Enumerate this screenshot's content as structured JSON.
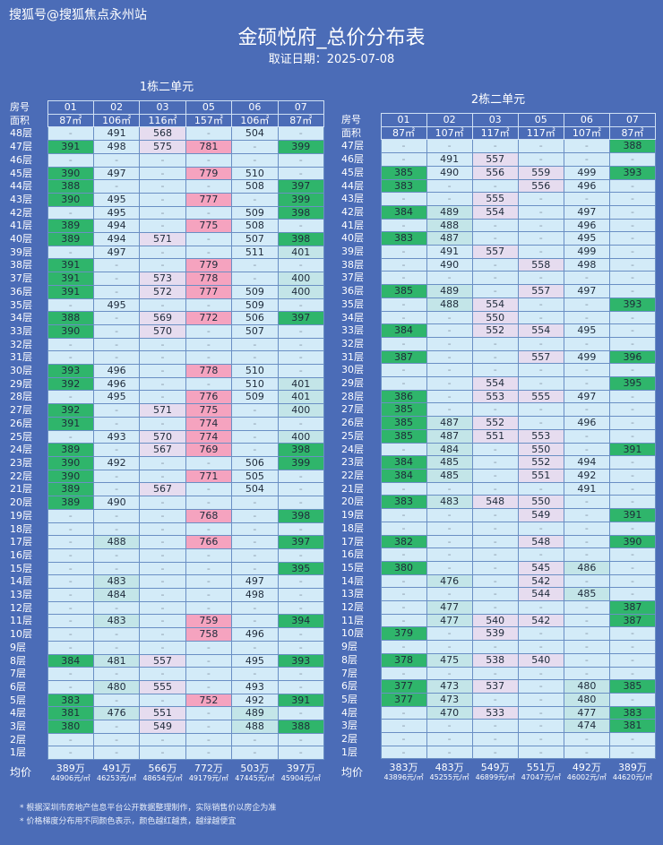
{
  "watermark": "搜狐号@搜狐焦点永州站",
  "title": "金硕悦府_总价分布表",
  "subtitle": "取证日期：2025-07-08",
  "colors": {
    "background": "#4b6cb7",
    "base": "#d3ebf8",
    "green": "#2fb56b",
    "teal": "#c3e5e8",
    "purple": "#e6dcef",
    "pink": "#f5a3bf"
  },
  "row_labels": {
    "room": "房号",
    "area": "面积",
    "avg": "均价"
  },
  "tables": [
    {
      "title": "1栋二单元",
      "rooms": [
        "01",
        "02",
        "03",
        "05",
        "06",
        "07"
      ],
      "areas": [
        "87㎡",
        "106㎡",
        "116㎡",
        "157㎡",
        "106㎡",
        "87㎡"
      ],
      "rows": [
        [
          "48层",
          "-",
          "491",
          "568",
          "-",
          "504",
          "-"
        ],
        [
          "47层",
          "391",
          "498",
          "575",
          "781",
          "-",
          "399"
        ],
        [
          "46层",
          "-",
          "-",
          "-",
          "-",
          "-",
          "-"
        ],
        [
          "45层",
          "390",
          "497",
          "-",
          "779",
          "510",
          "-"
        ],
        [
          "44层",
          "388",
          "-",
          "-",
          "-",
          "508",
          "397"
        ],
        [
          "43层",
          "390",
          "495",
          "-",
          "777",
          "-",
          "399"
        ],
        [
          "42层",
          "-",
          "495",
          "-",
          "-",
          "509",
          "398"
        ],
        [
          "41层",
          "389",
          "494",
          "-",
          "775",
          "508",
          "-"
        ],
        [
          "40层",
          "389",
          "494",
          "571",
          "-",
          "507",
          "398"
        ],
        [
          "39层",
          "-",
          "497",
          "-",
          "-",
          "511",
          "401"
        ],
        [
          "38层",
          "391",
          "-",
          "-",
          "779",
          "-",
          "-"
        ],
        [
          "37层",
          "391",
          "-",
          "573",
          "778",
          "-",
          "400"
        ],
        [
          "36层",
          "391",
          "-",
          "572",
          "777",
          "509",
          "400"
        ],
        [
          "35层",
          "-",
          "495",
          "-",
          "-",
          "509",
          "-"
        ],
        [
          "34层",
          "388",
          "-",
          "569",
          "772",
          "506",
          "397"
        ],
        [
          "33层",
          "390",
          "-",
          "570",
          "-",
          "507",
          "-"
        ],
        [
          "32层",
          "-",
          "-",
          "-",
          "-",
          "-",
          "-"
        ],
        [
          "31层",
          "-",
          "-",
          "-",
          "-",
          "-",
          "-"
        ],
        [
          "30层",
          "393",
          "496",
          "-",
          "778",
          "510",
          "-"
        ],
        [
          "29层",
          "392",
          "496",
          "-",
          "-",
          "510",
          "401"
        ],
        [
          "28层",
          "-",
          "495",
          "-",
          "776",
          "509",
          "401"
        ],
        [
          "27层",
          "392",
          "-",
          "571",
          "775",
          "-",
          "400"
        ],
        [
          "26层",
          "391",
          "-",
          "-",
          "774",
          "-",
          "-"
        ],
        [
          "25层",
          "-",
          "493",
          "570",
          "774",
          "-",
          "400"
        ],
        [
          "24层",
          "389",
          "-",
          "567",
          "769",
          "-",
          "398"
        ],
        [
          "23层",
          "390",
          "492",
          "-",
          "-",
          "506",
          "399"
        ],
        [
          "22层",
          "390",
          "-",
          "-",
          "771",
          "505",
          "-"
        ],
        [
          "21层",
          "389",
          "-",
          "567",
          "-",
          "504",
          "-"
        ],
        [
          "20层",
          "389",
          "490",
          "-",
          "-",
          "-",
          "-"
        ],
        [
          "19层",
          "-",
          "-",
          "-",
          "768",
          "-",
          "398"
        ],
        [
          "18层",
          "-",
          "-",
          "-",
          "-",
          "-",
          "-"
        ],
        [
          "17层",
          "-",
          "488",
          "-",
          "766",
          "-",
          "397"
        ],
        [
          "16层",
          "-",
          "-",
          "-",
          "-",
          "-",
          "-"
        ],
        [
          "15层",
          "-",
          "-",
          "-",
          "-",
          "-",
          "395"
        ],
        [
          "14层",
          "-",
          "483",
          "-",
          "-",
          "497",
          "-"
        ],
        [
          "13层",
          "-",
          "484",
          "-",
          "-",
          "498",
          "-"
        ],
        [
          "12层",
          "-",
          "-",
          "-",
          "-",
          "-",
          "-"
        ],
        [
          "11层",
          "-",
          "483",
          "-",
          "759",
          "-",
          "394"
        ],
        [
          "10层",
          "-",
          "-",
          "-",
          "758",
          "496",
          "-"
        ],
        [
          "9层",
          "-",
          "-",
          "-",
          "-",
          "-",
          "-"
        ],
        [
          "8层",
          "384",
          "481",
          "557",
          "-",
          "495",
          "393"
        ],
        [
          "7层",
          "-",
          "-",
          "-",
          "-",
          "-",
          "-"
        ],
        [
          "6层",
          "-",
          "480",
          "555",
          "-",
          "493",
          "-"
        ],
        [
          "5层",
          "383",
          "-",
          "-",
          "752",
          "492",
          "391"
        ],
        [
          "4层",
          "381",
          "476",
          "551",
          "-",
          "489",
          "-"
        ],
        [
          "3层",
          "380",
          "-",
          "549",
          "-",
          "488",
          "388"
        ],
        [
          "2层",
          "-",
          "-",
          "-",
          "-",
          "-",
          "-"
        ],
        [
          "1层",
          "-",
          "-",
          "-",
          "-",
          "-",
          "-"
        ]
      ],
      "averages": [
        {
          "total": "389万",
          "unit": "44906元/㎡"
        },
        {
          "total": "491万",
          "unit": "46253元/㎡"
        },
        {
          "total": "566万",
          "unit": "48654元/㎡"
        },
        {
          "total": "772万",
          "unit": "49179元/㎡"
        },
        {
          "total": "503万",
          "unit": "47445元/㎡"
        },
        {
          "total": "397万",
          "unit": "45904元/㎡"
        }
      ]
    },
    {
      "title": "2栋二单元",
      "rooms": [
        "01",
        "02",
        "03",
        "05",
        "06",
        "07"
      ],
      "areas": [
        "87㎡",
        "107㎡",
        "117㎡",
        "117㎡",
        "107㎡",
        "87㎡"
      ],
      "rows": [
        [
          "47层",
          "-",
          "-",
          "-",
          "-",
          "-",
          "388"
        ],
        [
          "46层",
          "-",
          "491",
          "557",
          "-",
          "-",
          "-"
        ],
        [
          "45层",
          "385",
          "490",
          "556",
          "559",
          "499",
          "393"
        ],
        [
          "44层",
          "383",
          "-",
          "-",
          "556",
          "496",
          "-"
        ],
        [
          "43层",
          "-",
          "-",
          "555",
          "-",
          "-",
          "-"
        ],
        [
          "42层",
          "384",
          "489",
          "554",
          "-",
          "497",
          "-"
        ],
        [
          "41层",
          "-",
          "488",
          "-",
          "-",
          "496",
          "-"
        ],
        [
          "40层",
          "383",
          "487",
          "-",
          "-",
          "495",
          "-"
        ],
        [
          "39层",
          "-",
          "491",
          "557",
          "-",
          "499",
          "-"
        ],
        [
          "38层",
          "-",
          "490",
          "-",
          "558",
          "498",
          "-"
        ],
        [
          "37层",
          "-",
          "-",
          "-",
          "-",
          "-",
          "-"
        ],
        [
          "36层",
          "385",
          "489",
          "-",
          "557",
          "497",
          "-"
        ],
        [
          "35层",
          "-",
          "488",
          "554",
          "-",
          "-",
          "393"
        ],
        [
          "34层",
          "-",
          "-",
          "550",
          "-",
          "-",
          "-"
        ],
        [
          "33层",
          "384",
          "-",
          "552",
          "554",
          "495",
          "-"
        ],
        [
          "32层",
          "-",
          "-",
          "-",
          "-",
          "-",
          "-"
        ],
        [
          "31层",
          "387",
          "-",
          "-",
          "557",
          "499",
          "396"
        ],
        [
          "30层",
          "-",
          "-",
          "-",
          "-",
          "-",
          "-"
        ],
        [
          "29层",
          "-",
          "-",
          "554",
          "-",
          "-",
          "395"
        ],
        [
          "28层",
          "386",
          "-",
          "553",
          "555",
          "497",
          "-"
        ],
        [
          "27层",
          "385",
          "-",
          "-",
          "-",
          "-",
          "-"
        ],
        [
          "26层",
          "385",
          "487",
          "552",
          "-",
          "496",
          "-"
        ],
        [
          "25层",
          "385",
          "487",
          "551",
          "553",
          "-",
          "-"
        ],
        [
          "24层",
          "-",
          "484",
          "-",
          "550",
          "-",
          "391"
        ],
        [
          "23层",
          "384",
          "485",
          "-",
          "552",
          "494",
          "-"
        ],
        [
          "22层",
          "384",
          "485",
          "-",
          "551",
          "492",
          "-"
        ],
        [
          "21层",
          "-",
          "-",
          "-",
          "-",
          "491",
          "-"
        ],
        [
          "20层",
          "383",
          "483",
          "548",
          "550",
          "-",
          "-"
        ],
        [
          "19层",
          "-",
          "-",
          "-",
          "549",
          "-",
          "391"
        ],
        [
          "18层",
          "-",
          "-",
          "-",
          "-",
          "-",
          "-"
        ],
        [
          "17层",
          "382",
          "-",
          "-",
          "548",
          "-",
          "390"
        ],
        [
          "16层",
          "-",
          "-",
          "-",
          "-",
          "-",
          "-"
        ],
        [
          "15层",
          "380",
          "-",
          "-",
          "545",
          "486",
          "-"
        ],
        [
          "14层",
          "-",
          "476",
          "-",
          "542",
          "-",
          "-"
        ],
        [
          "13层",
          "-",
          "-",
          "-",
          "544",
          "485",
          "-"
        ],
        [
          "12层",
          "-",
          "477",
          "-",
          "-",
          "-",
          "387"
        ],
        [
          "11层",
          "-",
          "477",
          "540",
          "542",
          "-",
          "387"
        ],
        [
          "10层",
          "379",
          "-",
          "539",
          "-",
          "-",
          "-"
        ],
        [
          "9层",
          "-",
          "-",
          "-",
          "-",
          "-",
          "-"
        ],
        [
          "8层",
          "378",
          "475",
          "538",
          "540",
          "-",
          "-"
        ],
        [
          "7层",
          "-",
          "-",
          "-",
          "-",
          "-",
          "-"
        ],
        [
          "6层",
          "377",
          "473",
          "537",
          "-",
          "480",
          "385"
        ],
        [
          "5层",
          "377",
          "473",
          "-",
          "-",
          "480",
          "-"
        ],
        [
          "4层",
          "-",
          "470",
          "533",
          "-",
          "477",
          "383"
        ],
        [
          "3层",
          "-",
          "-",
          "-",
          "-",
          "474",
          "381"
        ],
        [
          "2层",
          "-",
          "-",
          "-",
          "-",
          "-",
          "-"
        ],
        [
          "1层",
          "-",
          "-",
          "-",
          "-",
          "-",
          "-"
        ]
      ],
      "averages": [
        {
          "total": "383万",
          "unit": "43896元/㎡"
        },
        {
          "total": "483万",
          "unit": "45255元/㎡"
        },
        {
          "total": "549万",
          "unit": "46899元/㎡"
        },
        {
          "total": "551万",
          "unit": "47047元/㎡"
        },
        {
          "total": "492万",
          "unit": "46002元/㎡"
        },
        {
          "total": "389万",
          "unit": "44620元/㎡"
        }
      ]
    }
  ],
  "notes": [
    "* 根据深圳市房地产信息平台公开数据整理制作，实际销售价以房企为准",
    "* 价格梯度分布用不同颜色表示，颜色越红越贵，越绿越便宜"
  ]
}
